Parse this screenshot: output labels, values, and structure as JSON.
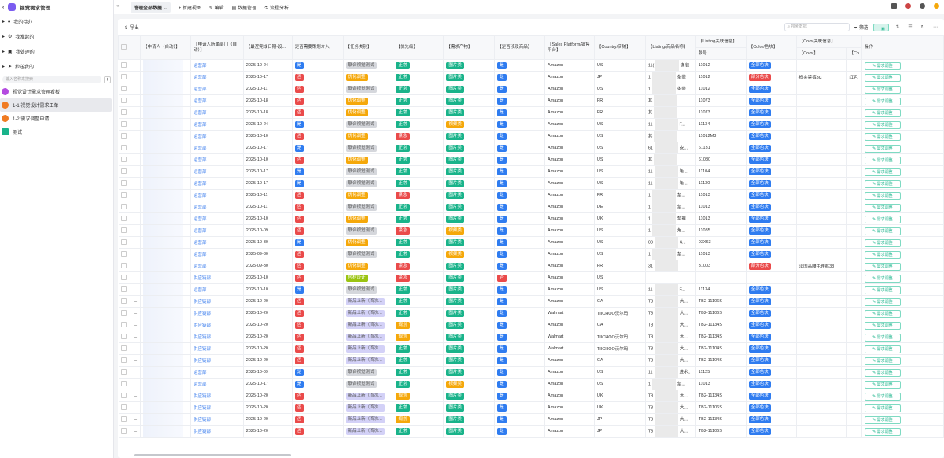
{
  "app": {
    "title": "视觉需求管理"
  },
  "sidebar": {
    "nav": [
      {
        "label": "我的待办",
        "icon": "bell-icon"
      },
      {
        "label": "我发起的",
        "icon": "gear-icon"
      },
      {
        "label": "我处理的",
        "icon": "inbox-icon"
      },
      {
        "label": "抄送我的",
        "icon": "send-icon"
      }
    ],
    "search_placeholder": "输入名称来搜索",
    "items": [
      {
        "label": "视觉设计需求管理看板",
        "color": "#b44be0"
      },
      {
        "label": "1-1.视觉设计需求工单",
        "color": "#f07b22"
      },
      {
        "label": "1-2.需求调整申请",
        "color": "#f07b22"
      },
      {
        "label": "测试",
        "color": "#19b38a"
      }
    ]
  },
  "topbar": {
    "view": "管理全部数据",
    "new_view": "+ 新建视图",
    "edit": "编辑",
    "data_manage": "数据管理",
    "flow": "流程分析"
  },
  "toolbar": {
    "export": "导出",
    "search_placeholder": "搜索数据",
    "filter": "筛选"
  },
  "columns": {
    "applicant": "【申请人（自动）】",
    "dept": "【申请人所属部门（自动）】",
    "date": "【最近完成日期-设...",
    "planning": "是否需要策划介入",
    "task": "【任务类别】",
    "priority": "【优先级】",
    "output": "【需求产物】",
    "product": "【是否涉及商品】",
    "platform": "【Sales Platform/销售平台】",
    "country": "【Country/店铺】",
    "listing": "【Listing/商品名称】",
    "listing_info": "【Listing关联信息】",
    "style_no": "款号",
    "color_block": "【Color/色块】",
    "color_info": "【Color关联信息】",
    "color": "【Color】",
    "color2": "【Co",
    "action": "操作"
  },
  "action_label": "需求调整",
  "tag_colors": {
    "是": "#2f7cf0",
    "否": "#ea4a4a",
    "联合视觉测试": "#d5d7dc",
    "优化调整": "#f5a80a",
    "包材设计": "#9bc412",
    "新品上新（首次...": "#d3d1f7",
    "正常": "#19b38a",
    "紧急": "#ea4a4a",
    "规划": "#f5a80a",
    "图片类": "#19b38a",
    "视频类": "#f5a80a",
    "全部色块": "#2f7cf0",
    "部分色块": "#ea4a4a"
  },
  "rows": [
    [
      "",
      "运营部",
      "2025-10-24",
      "是",
      "联合视觉测试",
      "正常",
      "图片类",
      "是",
      "Amazon",
      "US",
      "11(",
      "条装",
      "11012",
      "全部色块",
      "",
      ""
    ],
    [
      "",
      "运营部",
      "2025-10-17",
      "否",
      "优化调整",
      "正常",
      "图片类",
      "是",
      "Amazon",
      "JP",
      "1",
      "条装",
      "11012",
      "部分色块",
      "桶夹禁裤3C",
      "红色"
    ],
    [
      "",
      "运营部",
      "2025-10-11",
      "否",
      "联合视觉测试",
      "正常",
      "图片类",
      "是",
      "Amazon",
      "US",
      "1",
      "条装",
      "11012",
      "全部色块",
      "",
      ""
    ],
    [
      "",
      "运营部",
      "2025-10-18",
      "否",
      "优化调整",
      "正常",
      "图片类",
      "是",
      "Amazon",
      "FR",
      "其",
      "",
      "11073",
      "全部色块",
      "",
      ""
    ],
    [
      "",
      "运营部",
      "2025-10-18",
      "否",
      "优化调整",
      "正常",
      "图片类",
      "是",
      "Amazon",
      "FR",
      "其",
      "",
      "11073",
      "全部色块",
      "",
      ""
    ],
    [
      "",
      "运营部",
      "2025-10-24",
      "是",
      "联合视觉测试",
      "正常",
      "视频类",
      "是",
      "Amazon",
      "US",
      "11",
      "F...",
      "11134",
      "全部色块",
      "",
      ""
    ],
    [
      "",
      "运营部",
      "2025-10-10",
      "否",
      "优化调整",
      "紧急",
      "图片类",
      "是",
      "Amazon",
      "US",
      "其",
      "",
      "11012M3",
      "全部色块",
      "",
      ""
    ],
    [
      "",
      "运营部",
      "2025-10-17",
      "是",
      "联合视觉测试",
      "正常",
      "图片类",
      "是",
      "Amazon",
      "US",
      "61",
      "安...",
      "61131",
      "全部色块",
      "",
      ""
    ],
    [
      "",
      "运营部",
      "2025-10-10",
      "否",
      "优化调整",
      "正常",
      "图片类",
      "是",
      "Amazon",
      "US",
      "其",
      "",
      "61080",
      "全部色块",
      "",
      ""
    ],
    [
      "",
      "运营部",
      "2025-10-17",
      "是",
      "联合视觉测试",
      "正常",
      "图片类",
      "是",
      "Amazon",
      "US",
      "11",
      "角...",
      "11104",
      "全部色块",
      "",
      ""
    ],
    [
      "",
      "运营部",
      "2025-10-17",
      "是",
      "联合视觉测试",
      "正常",
      "图片类",
      "是",
      "Amazon",
      "US",
      "11",
      "角...",
      "11130",
      "全部色块",
      "",
      ""
    ],
    [
      "",
      "运营部",
      "2025-10-11",
      "否",
      "优化调整",
      "紧急",
      "图片类",
      "是",
      "Amazon",
      "FR",
      "1",
      "禁...",
      "11013",
      "全部色块",
      "",
      ""
    ],
    [
      "",
      "运营部",
      "2025-10-11",
      "否",
      "联合视觉测试",
      "正常",
      "图片类",
      "是",
      "Amazon",
      "DE",
      "1",
      "禁...",
      "11013",
      "全部色块",
      "",
      ""
    ],
    [
      "",
      "运营部",
      "2025-10-10",
      "否",
      "优化调整",
      "正常",
      "图片类",
      "是",
      "Amazon",
      "UK",
      "1",
      "禁裤",
      "11013",
      "全部色块",
      "",
      ""
    ],
    [
      "",
      "运营部",
      "2025-10-09",
      "否",
      "联合视觉测试",
      "紧急",
      "视频类",
      "是",
      "Amazon",
      "US",
      "1",
      "角...",
      "11085",
      "全部色块",
      "",
      ""
    ],
    [
      "",
      "运营部",
      "2025-10-30",
      "是",
      "优化调整",
      "正常",
      "图片类",
      "是",
      "Amazon",
      "US",
      "03",
      "4...",
      "03X63",
      "全部色块",
      "",
      ""
    ],
    [
      "",
      "运营部",
      "2025-09-30",
      "否",
      "联合视觉测试",
      "正常",
      "视频类",
      "是",
      "Amazon",
      "US",
      "1",
      "禁...",
      "11013",
      "全部色块",
      "",
      ""
    ],
    [
      "",
      "运营部",
      "2025-09-30",
      "否",
      "优化调整",
      "紧急",
      "图片类",
      "是",
      "Amazon",
      "FR",
      "31",
      "",
      "31003",
      "部分色块",
      "法国高腰生理裤38",
      ""
    ],
    [
      "",
      "供应链部",
      "2025-10-10",
      "否",
      "包材设计",
      "紧急",
      "图片类",
      "否",
      "Amazon",
      "US",
      "",
      "",
      "",
      "",
      "",
      ""
    ],
    [
      "",
      "运营部",
      "2025-10-10",
      "是",
      "联合视觉测试",
      "正常",
      "图片类",
      "是",
      "Amazon",
      "US",
      "11",
      "F...",
      "11134",
      "全部色块",
      "",
      ""
    ],
    [
      "...",
      "供应链部",
      "2025-10-20",
      "否",
      "新品上新（首次...",
      "正常",
      "图片类",
      "是",
      "Amazon",
      "CA",
      "T8",
      "大...",
      "TB2-11106S",
      "全部色块",
      "",
      ""
    ],
    [
      "...",
      "供应链部",
      "2025-10-20",
      "否",
      "新品上新（首次...",
      "正常",
      "图片类",
      "是",
      "Walmart",
      "TIICHOO沃尔玛",
      "T8",
      "大...",
      "TB2-11106S",
      "全部色块",
      "",
      ""
    ],
    [
      "...",
      "供应链部",
      "2025-10-20",
      "否",
      "新品上新（首次...",
      "规划",
      "图片类",
      "是",
      "Amazon",
      "CA",
      "T8",
      "大...",
      "TB2-11134S",
      "全部色块",
      "",
      ""
    ],
    [
      "...",
      "供应链部",
      "2025-10-20",
      "否",
      "新品上新（首次...",
      "规划",
      "图片类",
      "是",
      "Walmart",
      "TIICHOO沃尔玛",
      "T8",
      "大...",
      "TB2-11134S",
      "全部色块",
      "",
      ""
    ],
    [
      "...",
      "供应链部",
      "2025-10-20",
      "否",
      "新品上新（首次...",
      "正常",
      "图片类",
      "是",
      "Walmart",
      "TIICHOO沃尔玛",
      "T8",
      "大...",
      "TB2-11104S",
      "全部色块",
      "",
      ""
    ],
    [
      "...",
      "供应链部",
      "2025-10-20",
      "否",
      "新品上新（首次...",
      "正常",
      "图片类",
      "是",
      "Amazon",
      "CA",
      "T8",
      "大...",
      "TB2-11104S",
      "全部色块",
      "",
      ""
    ],
    [
      "",
      "运营部",
      "2025-10-09",
      "是",
      "联合视觉测试",
      "正常",
      "图片类",
      "是",
      "Amazon",
      "US",
      "11",
      "进术...",
      "11125",
      "全部色块",
      "",
      ""
    ],
    [
      "",
      "运营部",
      "2025-10-17",
      "是",
      "联合视觉测试",
      "正常",
      "视频类",
      "是",
      "Amazon",
      "US",
      "1",
      "禁...",
      "11013",
      "全部色块",
      "",
      ""
    ],
    [
      "...",
      "供应链部",
      "2025-10-20",
      "否",
      "新品上新（首次...",
      "规划",
      "图片类",
      "是",
      "Amazon",
      "UK",
      "T8",
      "大...",
      "TB2-11134S",
      "全部色块",
      "",
      ""
    ],
    [
      "...",
      "供应链部",
      "2025-10-20",
      "否",
      "新品上新（首次...",
      "正常",
      "图片类",
      "是",
      "Amazon",
      "UK",
      "T8",
      "大...",
      "TB2-11106S",
      "全部色块",
      "",
      ""
    ],
    [
      "...",
      "供应链部",
      "2025-10-20",
      "否",
      "新品上新（首次...",
      "规划",
      "图片类",
      "是",
      "Amazon",
      "JP",
      "T8",
      "大...",
      "TB2-11134S",
      "全部色块",
      "",
      ""
    ],
    [
      "...",
      "供应链部",
      "2025-10-20",
      "否",
      "新品上新（首次...",
      "正常",
      "图片类",
      "是",
      "Amazon",
      "JP",
      "T8",
      "大...",
      "TB2-11106S",
      "全部色块",
      "",
      ""
    ]
  ]
}
